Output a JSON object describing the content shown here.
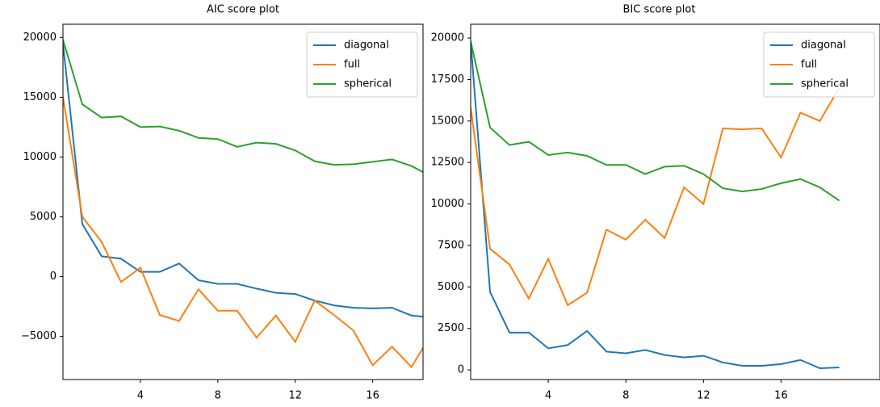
{
  "chart_data": [
    {
      "type": "line",
      "title": "AIC score plot",
      "x": [
        0,
        1,
        2,
        3,
        4,
        5,
        6,
        7,
        8,
        9,
        10,
        11,
        12,
        13,
        14,
        15,
        16,
        17,
        18,
        19
      ],
      "xlim": [
        0,
        18.6
      ],
      "xticks": [
        4,
        8,
        12,
        16
      ],
      "ylim": [
        -8600,
        21100
      ],
      "yticks": [
        {
          "value": -5000,
          "label": "−5000"
        },
        0,
        5000,
        10000,
        15000,
        20000
      ],
      "legend": "upper right",
      "series": [
        {
          "name": "diagonal",
          "color": "#1f77b4",
          "values": [
            19500,
            4400,
            1700,
            1500,
            400,
            400,
            1100,
            -300,
            -600,
            -600,
            -1000,
            -1350,
            -1450,
            -2000,
            -2400,
            -2600,
            -2650,
            -2600,
            -3250,
            -3400
          ]
        },
        {
          "name": "full",
          "color": "#ff7f0e",
          "values": [
            15000,
            5000,
            2900,
            -450,
            750,
            -3200,
            -3700,
            -1050,
            -2850,
            -2850,
            -5100,
            -3250,
            -5450,
            -2000,
            -3200,
            -4500,
            -7400,
            -5850,
            -7550,
            -4900
          ]
        },
        {
          "name": "spherical",
          "color": "#2ca02c",
          "values": [
            19800,
            14400,
            13300,
            13400,
            12500,
            12550,
            12200,
            11600,
            11500,
            10850,
            11200,
            11100,
            10550,
            9650,
            9350,
            9400,
            9600,
            9800,
            9250,
            8400
          ]
        }
      ]
    },
    {
      "type": "line",
      "title": "BIC score plot",
      "x": [
        0,
        1,
        2,
        3,
        4,
        5,
        6,
        7,
        8,
        9,
        10,
        11,
        12,
        13,
        14,
        15,
        16,
        17,
        18,
        19
      ],
      "xlim": [
        0,
        21.1
      ],
      "xticks": [
        4,
        8,
        12,
        16
      ],
      "ylim": [
        -580,
        20830
      ],
      "yticks": [
        0,
        2500,
        5000,
        7500,
        10000,
        12500,
        15000,
        17500,
        20000
      ],
      "legend": "upper right",
      "series": [
        {
          "name": "diagonal",
          "color": "#1f77b4",
          "values": [
            19800,
            4700,
            2250,
            2250,
            1300,
            1500,
            2350,
            1100,
            1000,
            1200,
            900,
            750,
            850,
            450,
            250,
            250,
            350,
            600,
            100,
            150
          ]
        },
        {
          "name": "full",
          "color": "#ff7f0e",
          "values": [
            15800,
            7300,
            6350,
            4300,
            6700,
            3900,
            4650,
            8450,
            7850,
            9050,
            7950,
            11000,
            10000,
            14550,
            14500,
            14550,
            12800,
            15500,
            15000,
            17000
          ]
        },
        {
          "name": "spherical",
          "color": "#2ca02c",
          "values": [
            19800,
            14600,
            13550,
            13750,
            12950,
            13100,
            12900,
            12350,
            12350,
            11800,
            12250,
            12300,
            11800,
            10950,
            10750,
            10900,
            11250,
            11500,
            11000,
            10200
          ]
        }
      ]
    }
  ]
}
